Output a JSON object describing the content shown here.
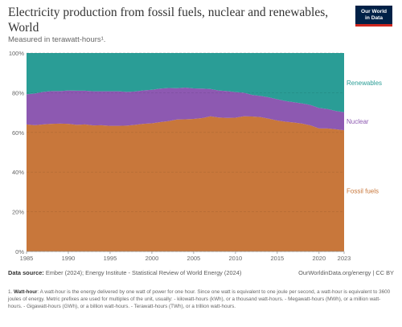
{
  "header": {
    "title": "Electricity production from fossil fuels, nuclear and renewables, World",
    "subtitle": "Measured in terawatt-hours¹."
  },
  "logo": {
    "text": "Our World\nin Data"
  },
  "chart_data": {
    "type": "area",
    "stacked_percent": true,
    "x": [
      1985,
      1986,
      1987,
      1988,
      1989,
      1990,
      1991,
      1992,
      1993,
      1994,
      1995,
      1996,
      1997,
      1998,
      1999,
      2000,
      2001,
      2002,
      2003,
      2004,
      2005,
      2006,
      2007,
      2008,
      2009,
      2010,
      2011,
      2012,
      2013,
      2014,
      2015,
      2016,
      2017,
      2018,
      2019,
      2020,
      2021,
      2022,
      2023
    ],
    "series": [
      {
        "name": "Fossil fuels",
        "color": "#c8773b",
        "values": [
          64.0,
          63.6,
          64.0,
          64.3,
          64.4,
          64.3,
          63.8,
          64.0,
          63.5,
          63.6,
          63.3,
          63.3,
          63.4,
          63.8,
          64.3,
          64.6,
          65.2,
          65.7,
          66.5,
          66.6,
          66.8,
          67.2,
          68.1,
          67.5,
          67.3,
          67.4,
          68.1,
          68.0,
          67.7,
          66.9,
          66.0,
          65.4,
          65.0,
          64.4,
          63.5,
          62.0,
          62.0,
          61.6,
          61.1
        ]
      },
      {
        "name": "Nuclear",
        "color": "#8d59b1",
        "values": [
          15.2,
          16.0,
          16.4,
          16.5,
          16.4,
          16.8,
          17.2,
          17.0,
          17.2,
          17.1,
          17.4,
          17.4,
          17.0,
          16.8,
          16.9,
          16.9,
          16.9,
          16.7,
          15.8,
          16.0,
          15.4,
          14.9,
          13.8,
          13.6,
          13.5,
          12.9,
          11.9,
          10.9,
          10.7,
          10.8,
          10.7,
          10.4,
          10.2,
          10.2,
          10.3,
          10.3,
          9.8,
          9.2,
          9.1
        ]
      },
      {
        "name": "Renewables",
        "color": "#2a9d96",
        "values": [
          20.8,
          20.4,
          19.6,
          19.2,
          19.2,
          18.9,
          19.0,
          19.0,
          19.3,
          19.3,
          19.3,
          19.3,
          19.6,
          19.4,
          18.8,
          18.5,
          17.9,
          17.6,
          17.7,
          17.4,
          17.8,
          17.9,
          18.1,
          18.9,
          19.2,
          19.7,
          20.0,
          21.1,
          21.6,
          22.3,
          23.3,
          24.2,
          24.8,
          25.4,
          26.2,
          27.7,
          28.2,
          29.2,
          29.8
        ]
      }
    ],
    "y_ticks": [
      "0%",
      "20%",
      "40%",
      "60%",
      "80%",
      "100%"
    ],
    "x_ticks": [
      "1985",
      "1990",
      "1995",
      "2000",
      "2005",
      "2010",
      "2015",
      "2020",
      "2023"
    ],
    "ylim": [
      0,
      100
    ],
    "xlim": [
      1985,
      2023
    ],
    "legend_placement": "right, inline labels"
  },
  "footer": {
    "source_label": "Data source:",
    "source_text": "Ember (2024); Energy Institute - Statistical Review of World Energy (2024)",
    "url_text": "OurWorldinData.org/energy | CC BY",
    "note_number": "1.",
    "note_term": "Watt-hour",
    "note_text": ": A watt-hour is the energy delivered by one watt of power for one hour. Since one watt is equivalent to one joule per second, a watt-hour is equivalent to 3600 joules of energy. Metric prefixes are used for multiples of the unit, usually: - kilowatt-hours (kWh), or a thousand watt-hours. - Megawatt-hours (MWh), or a million watt-hours. - Gigawatt-hours (GWh), or a billion watt-hours. - Terawatt-hours (TWh), or a trillion watt-hours."
  }
}
